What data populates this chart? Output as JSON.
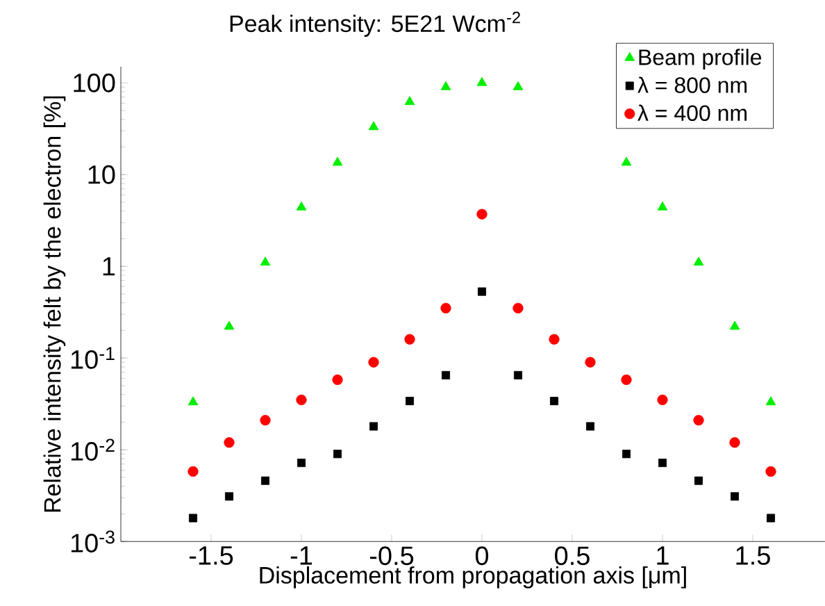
{
  "chart_data": {
    "type": "scatter",
    "title": "Peak intensity: 5E21 Wcm$^{-2}$",
    "xlabel": "Displacement from propagation axis [μm]",
    "ylabel": "Relative intensity felt by the electron [%]",
    "x": [
      -1.6,
      -1.4,
      -1.2,
      -1.0,
      -0.8,
      -0.6,
      -0.4,
      -0.2,
      0,
      0.2,
      0.4,
      0.6,
      0.8,
      1.0,
      1.2,
      1.4,
      1.6
    ],
    "series": [
      {
        "name": "Beam profile",
        "color": "#00ee00",
        "marker": "triangle",
        "values": [
          0.033,
          0.22,
          1.1,
          4.4,
          13.5,
          33,
          62,
          90,
          100,
          90,
          null,
          null,
          13.5,
          4.4,
          1.1,
          0.22,
          0.033
        ]
      },
      {
        "name": "λ = 800  nm",
        "color": "#000000",
        "marker": "square",
        "values": [
          0.0018,
          0.0031,
          0.0046,
          0.0072,
          0.009,
          0.018,
          0.034,
          0.065,
          0.53,
          0.065,
          0.034,
          0.018,
          0.009,
          0.0072,
          0.0046,
          0.0031,
          0.0018
        ]
      },
      {
        "name": "λ = 400  nm",
        "color": "#ff0000",
        "marker": "circle",
        "values": [
          0.0058,
          0.012,
          0.021,
          0.035,
          0.058,
          0.09,
          0.16,
          0.35,
          3.7,
          0.35,
          0.16,
          0.09,
          0.058,
          0.035,
          0.021,
          0.012,
          0.0058
        ]
      }
    ],
    "log": "y",
    "xlim": [
      -2,
      1.9
    ],
    "ylim": [
      0.001,
      150
    ],
    "xticks": [
      -1.5,
      -1,
      -0.5,
      0,
      0.5,
      1,
      1.5
    ],
    "yticks": [
      {
        "value": 0.001,
        "label": "10$^{-3}$"
      },
      {
        "value": 0.01,
        "label": "10$^{-2}$"
      },
      {
        "value": 0.1,
        "label": "10$^{-1}$"
      },
      1,
      10,
      100
    ],
    "legend": "top right"
  }
}
